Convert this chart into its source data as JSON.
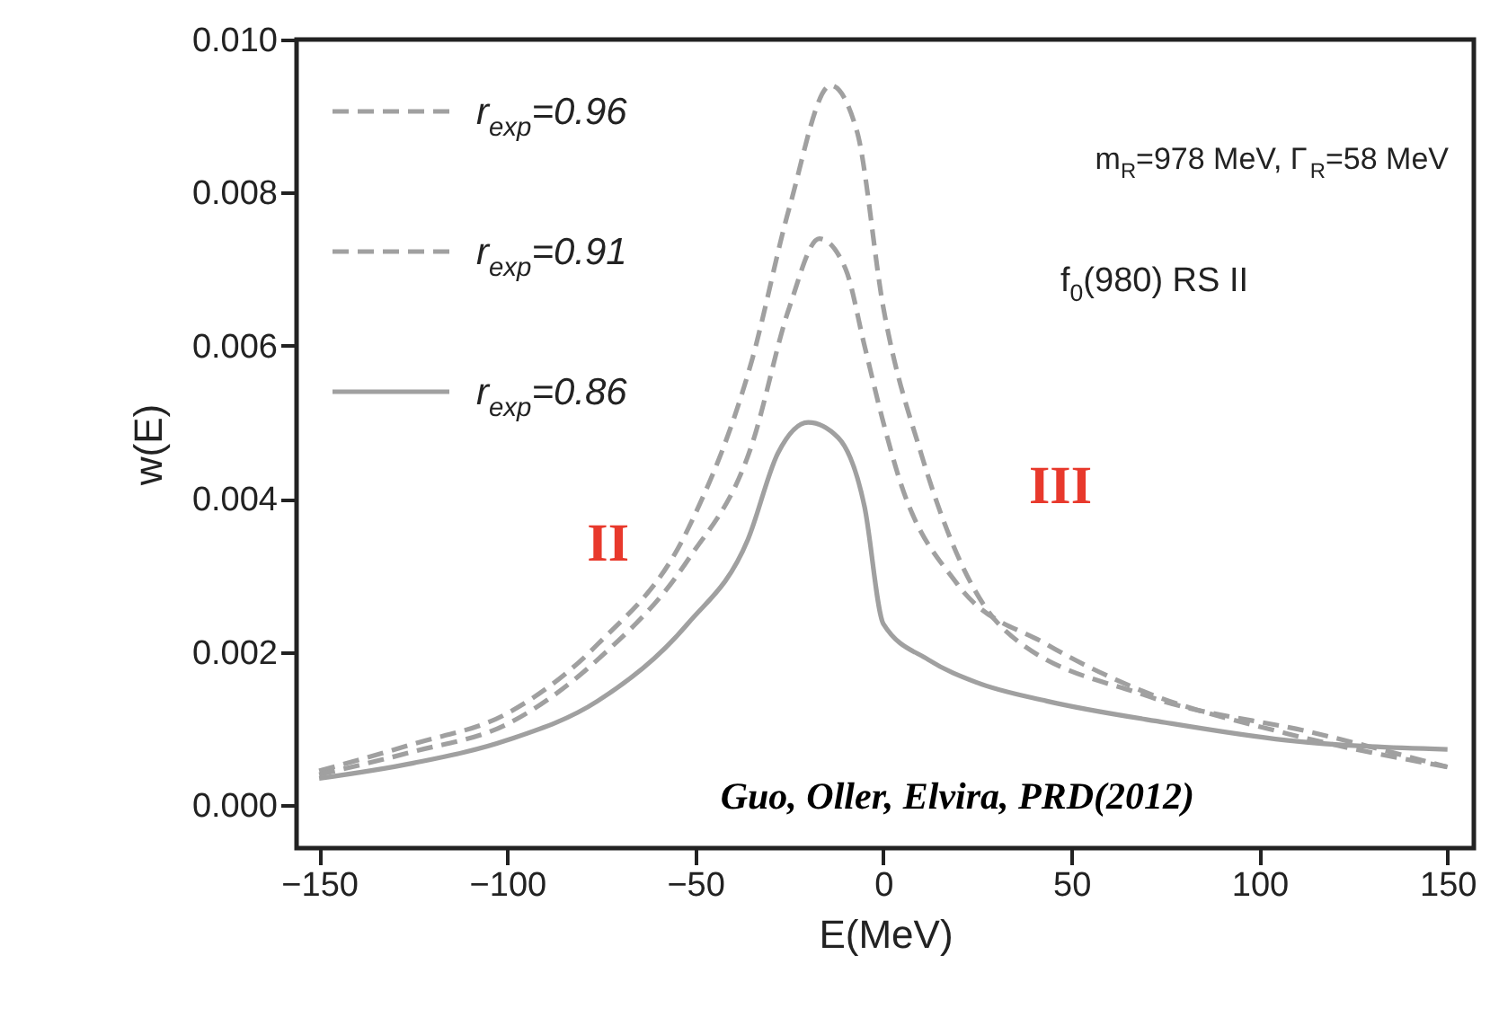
{
  "chart_data": {
    "type": "line",
    "xlabel": "E(MeV)",
    "ylabel": "w(E)",
    "xlim": [
      -156,
      157
    ],
    "ylim": [
      -0.00056,
      0.01
    ],
    "xticks": [
      -150,
      -100,
      -50,
      0,
      50,
      100,
      150
    ],
    "yticks": [
      {
        "value": 0,
        "label": "0.000"
      },
      {
        "value": 0.002,
        "label": "0.002"
      },
      {
        "value": 0.004,
        "label": "0.004"
      },
      {
        "value": 0.006,
        "label": "0.006"
      },
      {
        "value": 0.008,
        "label": "0.008"
      },
      {
        "value": 0.01,
        "label": "0.010"
      }
    ],
    "legend": "top left",
    "grid": false,
    "annotations": [
      "m$_{R}$=978 MeV, Γ$_{R}$=58 MeV",
      "f$_{0}$(980) RS II",
      "II",
      "III",
      "Guo, Oller, Elvira, PRD(2012)"
    ],
    "series": [
      {
        "name": "r$_{exp}$=0.96",
        "color": "#a0a0a0",
        "line_style": "dashed",
        "x": [
          -150,
          -125,
          -100,
          -76,
          -52,
          -35,
          -25,
          -14,
          -7,
          0,
          10,
          32,
          70,
          115,
          150
        ],
        "values": [
          0.00045,
          0.0008,
          0.0012,
          0.0021,
          0.0036,
          0.0058,
          0.0078,
          0.0094,
          0.0088,
          0.0065,
          0.0046,
          0.0023,
          0.00143,
          0.00094,
          0.0005
        ]
      },
      {
        "name": "r$_{exp}$=0.91",
        "color": "#a0a0a0",
        "line_style": "dashed",
        "x": [
          -150,
          -125,
          -100,
          -76,
          -52,
          -35,
          -25,
          -17,
          -10,
          -5,
          0,
          4,
          19.5,
          43.5,
          67,
          107,
          150
        ],
        "values": [
          0.0004,
          0.0007,
          0.00106,
          0.0019,
          0.0032,
          0.0047,
          0.0065,
          0.0074,
          0.007,
          0.006,
          0.005,
          0.0043,
          0.0029,
          0.0021,
          0.00153,
          0.00094,
          0.0005
        ]
      },
      {
        "name": "r$_{exp}$=0.86",
        "color": "#a0a0a0",
        "line_style": "solid",
        "x": [
          -150,
          -125,
          -100,
          -76,
          -52,
          -36,
          -28,
          -20,
          -12,
          -5,
          0,
          12,
          25,
          43.5,
          75,
          107,
          150
        ],
        "values": [
          0.00035,
          0.00055,
          0.00085,
          0.00136,
          0.00237,
          0.00347,
          0.0046,
          0.005,
          0.0048,
          0.0039,
          0.00237,
          0.0019,
          0.0016,
          0.00136,
          0.00108,
          0.00085,
          0.00073
        ]
      }
    ]
  }
}
